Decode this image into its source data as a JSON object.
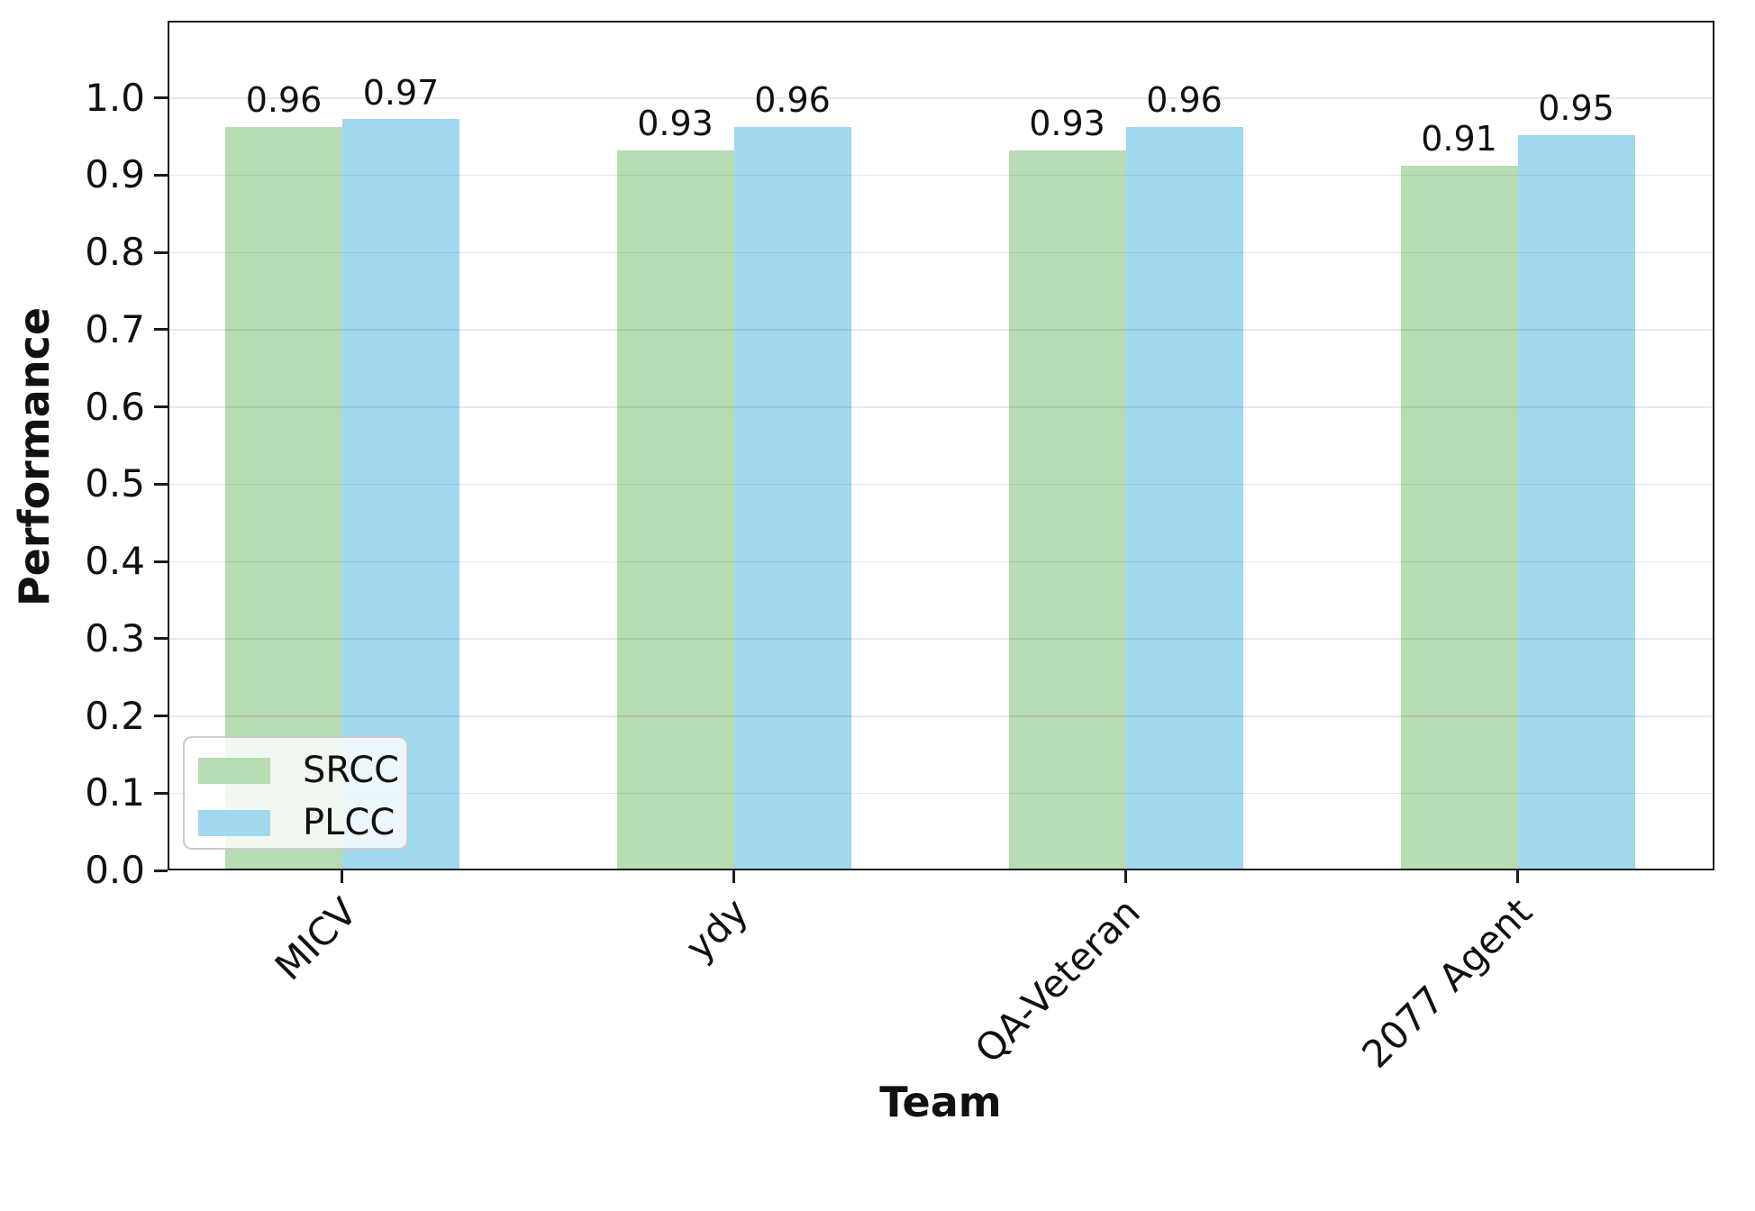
{
  "chart_data": {
    "type": "bar",
    "title": "",
    "xlabel": "Team",
    "ylabel": "Performance",
    "categories": [
      "MICV",
      "ydy",
      "QA-Veteran",
      "2077 Agent"
    ],
    "series": [
      {
        "name": "SRCC",
        "color": "#b7dbb2",
        "values": [
          0.96,
          0.93,
          0.93,
          0.91
        ]
      },
      {
        "name": "PLCC",
        "color": "#9fd8ef",
        "values": [
          0.97,
          0.96,
          0.96,
          0.95
        ]
      }
    ],
    "bar_value_labels": [
      [
        "0.96",
        "0.93",
        "0.93",
        "0.91"
      ],
      [
        "0.97",
        "0.96",
        "0.96",
        "0.95"
      ]
    ],
    "ylim": [
      0.0,
      1.1
    ],
    "yticks": [
      "0.0",
      "0.1",
      "0.2",
      "0.3",
      "0.4",
      "0.5",
      "0.6",
      "0.7",
      "0.8",
      "0.9",
      "1.0"
    ],
    "grid": true,
    "legend_position": "lower-left"
  }
}
